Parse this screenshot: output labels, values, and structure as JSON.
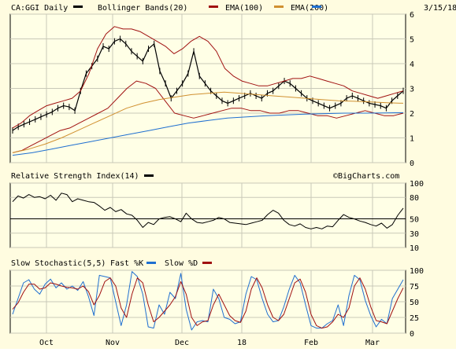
{
  "chart_data": [
    {
      "type": "line",
      "panel": "price",
      "symbol_label": "CA:GGI Daily",
      "date_label": "3/15/18",
      "legend": [
        {
          "name": "CA:GGI Daily",
          "color": "#000000"
        },
        {
          "name": "Bollinger Bands(20)",
          "color": "#a01010"
        },
        {
          "name": "EMA(100)",
          "color": "#d09030"
        },
        {
          "name": "EMA(200)",
          "color": "#1f6fd0"
        }
      ],
      "ylim": [
        0,
        6
      ],
      "yticks": [
        "0",
        "1",
        "2",
        "3",
        "4",
        "5",
        "6"
      ],
      "xticks": [
        "Oct",
        "Nov",
        "Dec",
        "18",
        "Feb",
        "Mar"
      ],
      "grid": true,
      "series": [
        {
          "name": "CA:GGI Daily",
          "color": "#000000",
          "values": [
            1.3,
            1.45,
            1.55,
            1.65,
            1.75,
            1.85,
            1.95,
            2.05,
            2.2,
            2.3,
            2.25,
            2.1,
            2.9,
            3.6,
            3.9,
            4.2,
            4.7,
            4.6,
            4.9,
            5.0,
            4.8,
            4.5,
            4.3,
            4.1,
            4.6,
            4.8,
            3.7,
            3.2,
            2.6,
            2.9,
            3.2,
            3.6,
            4.5,
            3.5,
            3.2,
            2.9,
            2.7,
            2.5,
            2.4,
            2.5,
            2.6,
            2.7,
            2.8,
            2.7,
            2.6,
            2.8,
            2.9,
            3.1,
            3.3,
            3.2,
            3.0,
            2.8,
            2.6,
            2.5,
            2.4,
            2.3,
            2.2,
            2.3,
            2.4,
            2.6,
            2.7,
            2.6,
            2.5,
            2.4,
            2.35,
            2.3,
            2.2,
            2.5,
            2.7,
            2.9
          ]
        },
        {
          "name": "Bollinger Bands(20)",
          "color": "#a01010",
          "values": [
            1.4,
            1.6,
            1.9,
            2.1,
            2.3,
            2.4,
            2.5,
            2.6,
            2.9,
            3.6,
            4.6,
            5.2,
            5.5,
            5.4,
            5.4,
            5.3,
            5.1,
            4.9,
            4.7,
            4.4,
            4.6,
            4.9,
            5.1,
            4.9,
            4.5,
            3.8,
            3.5,
            3.3,
            3.2,
            3.1,
            3.1,
            3.2,
            3.3,
            3.4,
            3.4,
            3.5,
            3.4,
            3.3,
            3.2,
            3.1,
            2.9,
            2.8,
            2.7,
            2.6,
            2.7,
            2.8,
            2.9
          ]
        },
        {
          "name": "Bollinger Bands(20)",
          "color": "#a01010",
          "values": [
            0.4,
            0.5,
            0.7,
            0.9,
            1.1,
            1.3,
            1.4,
            1.6,
            1.8,
            2.0,
            2.2,
            2.6,
            3.0,
            3.3,
            3.2,
            3.0,
            2.5,
            2.0,
            1.9,
            1.8,
            1.9,
            2.0,
            2.1,
            2.2,
            2.2,
            2.1,
            2.1,
            2.0,
            2.0,
            2.1,
            2.1,
            2.0,
            1.9,
            1.9,
            1.8,
            1.9,
            2.0,
            2.1,
            2.0,
            1.9,
            1.9,
            2.0
          ]
        },
        {
          "name": "EMA(100)",
          "color": "#d09030",
          "values": [
            0.4,
            0.55,
            0.75,
            1.0,
            1.3,
            1.6,
            1.9,
            2.2,
            2.4,
            2.55,
            2.65,
            2.75,
            2.8,
            2.85,
            2.8,
            2.75,
            2.7,
            2.65,
            2.6,
            2.55,
            2.5,
            2.48,
            2.45,
            2.42,
            2.4
          ]
        },
        {
          "name": "EMA(200)",
          "color": "#1f6fd0",
          "values": [
            0.3,
            0.4,
            0.55,
            0.7,
            0.85,
            1.0,
            1.15,
            1.3,
            1.45,
            1.6,
            1.7,
            1.8,
            1.85,
            1.9,
            1.93,
            1.96,
            1.98,
            2.0,
            2.0,
            2.01,
            2.02
          ]
        }
      ]
    },
    {
      "type": "line",
      "panel": "rsi",
      "title": "Relative Strength Index(14)",
      "watermark": "©BigCharts.com",
      "ylim": [
        10,
        100
      ],
      "yticks": [
        "10",
        "30",
        "50",
        "80",
        "100"
      ],
      "grid": true,
      "series": [
        {
          "name": "Relative Strength Index(14)",
          "color": "#000000",
          "values": [
            74,
            82,
            79,
            84,
            80,
            81,
            78,
            83,
            76,
            86,
            84,
            74,
            78,
            76,
            74,
            73,
            68,
            62,
            66,
            60,
            63,
            57,
            55,
            48,
            38,
            45,
            42,
            50,
            52,
            53,
            50,
            46,
            58,
            50,
            45,
            44,
            46,
            48,
            52,
            50,
            45,
            44,
            43,
            42,
            44,
            46,
            48,
            56,
            62,
            58,
            48,
            42,
            40,
            43,
            38,
            36,
            38,
            36,
            40,
            39,
            48,
            56,
            52,
            50,
            47,
            45,
            42,
            40,
            44,
            37,
            42,
            55,
            65
          ]
        }
      ]
    },
    {
      "type": "line",
      "panel": "stochastic",
      "legend": [
        {
          "name": "Slow Stochastic(5,5)",
          "color": "#000000"
        },
        {
          "name": "Fast %K",
          "color": "#1f6fd0"
        },
        {
          "name": "Slow %D",
          "color": "#a01010"
        }
      ],
      "ylim": [
        0,
        100
      ],
      "yticks": [
        "0",
        "25",
        "50",
        "75",
        "100"
      ],
      "grid": true,
      "series": [
        {
          "name": "Fast %K",
          "color": "#1f6fd0",
          "values": [
            30,
            55,
            80,
            85,
            70,
            62,
            78,
            86,
            72,
            80,
            70,
            75,
            68,
            82,
            58,
            28,
            92,
            90,
            88,
            50,
            12,
            45,
            98,
            90,
            62,
            10,
            8,
            45,
            30,
            65,
            55,
            95,
            38,
            5,
            18,
            20,
            18,
            70,
            55,
            25,
            22,
            15,
            18,
            62,
            90,
            85,
            55,
            30,
            18,
            20,
            42,
            70,
            92,
            80,
            45,
            12,
            8,
            8,
            15,
            20,
            45,
            12,
            60,
            92,
            85,
            52,
            28,
            10,
            22,
            15,
            55,
            70,
            85
          ]
        },
        {
          "name": "Slow %D",
          "color": "#a01010",
          "values": [
            38,
            48,
            65,
            78,
            78,
            70,
            72,
            80,
            78,
            75,
            73,
            72,
            70,
            75,
            66,
            45,
            60,
            82,
            88,
            75,
            40,
            25,
            62,
            88,
            80,
            45,
            18,
            25,
            35,
            45,
            58,
            82,
            62,
            25,
            12,
            18,
            20,
            45,
            62,
            45,
            28,
            20,
            17,
            35,
            70,
            88,
            72,
            45,
            25,
            20,
            30,
            55,
            80,
            86,
            65,
            30,
            12,
            8,
            10,
            18,
            30,
            25,
            40,
            75,
            88,
            70,
            42,
            20,
            18,
            15,
            35,
            55,
            72
          ]
        }
      ]
    }
  ]
}
